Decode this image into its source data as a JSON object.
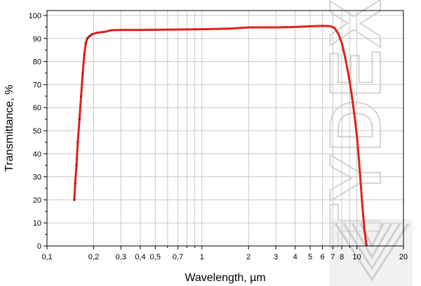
{
  "chart_data": {
    "type": "line",
    "title": "",
    "xlabel": "Wavelength, µm",
    "ylabel": "Transmittance, %",
    "x_scale": "log",
    "xlim": [
      0.1,
      20
    ],
    "ylim": [
      0,
      100
    ],
    "grid": true,
    "legend": "none",
    "x_ticks": [
      {
        "value": 0.1,
        "label": "0,1"
      },
      {
        "value": 0.2,
        "label": "0,2"
      },
      {
        "value": 0.3,
        "label": "0,3"
      },
      {
        "value": 0.4,
        "label": "0,4"
      },
      {
        "value": 0.5,
        "label": "0,5"
      },
      {
        "value": 0.7,
        "label": "0,7"
      },
      {
        "value": 1,
        "label": "1"
      },
      {
        "value": 2,
        "label": "2"
      },
      {
        "value": 3,
        "label": "3"
      },
      {
        "value": 4,
        "label": "4"
      },
      {
        "value": 5,
        "label": "5"
      },
      {
        "value": 6,
        "label": "6"
      },
      {
        "value": 7,
        "label": "7"
      },
      {
        "value": 8,
        "label": "8"
      },
      {
        "value": 10,
        "label": "10"
      },
      {
        "value": 20,
        "label": "20"
      }
    ],
    "x_minor_ticks": [
      0.6,
      0.8,
      0.9,
      9
    ],
    "y_ticks": [
      {
        "value": 0,
        "label": "0"
      },
      {
        "value": 10,
        "label": "10"
      },
      {
        "value": 20,
        "label": "20"
      },
      {
        "value": 30,
        "label": "30"
      },
      {
        "value": 40,
        "label": "40"
      },
      {
        "value": 50,
        "label": "50"
      },
      {
        "value": 60,
        "label": "60"
      },
      {
        "value": 70,
        "label": "70"
      },
      {
        "value": 80,
        "label": "80"
      },
      {
        "value": 90,
        "label": "90"
      },
      {
        "value": 100,
        "label": "100"
      }
    ],
    "series": [
      {
        "color": "#e0201b",
        "points": [
          [
            0.15,
            20
          ],
          [
            0.152,
            27
          ],
          [
            0.155,
            35
          ],
          [
            0.158,
            45
          ],
          [
            0.162,
            55
          ],
          [
            0.166,
            65
          ],
          [
            0.17,
            75
          ],
          [
            0.174,
            83
          ],
          [
            0.178,
            88
          ],
          [
            0.182,
            90
          ],
          [
            0.188,
            91
          ],
          [
            0.195,
            91.8
          ],
          [
            0.21,
            92.5
          ],
          [
            0.24,
            93
          ],
          [
            0.26,
            93.6
          ],
          [
            0.3,
            93.7
          ],
          [
            0.4,
            93.7
          ],
          [
            0.5,
            93.8
          ],
          [
            0.7,
            93.9
          ],
          [
            1.0,
            94.0
          ],
          [
            1.5,
            94.3
          ],
          [
            2.0,
            94.8
          ],
          [
            3.0,
            94.8
          ],
          [
            4.0,
            95.0
          ],
          [
            5.0,
            95.3
          ],
          [
            6.0,
            95.5
          ],
          [
            6.8,
            95.3
          ],
          [
            7.2,
            94.5
          ],
          [
            7.6,
            92.0
          ],
          [
            8.0,
            88.0
          ],
          [
            8.4,
            82.0
          ],
          [
            8.8,
            75.0
          ],
          [
            9.2,
            67.0
          ],
          [
            9.6,
            58.0
          ],
          [
            10.0,
            48.0
          ],
          [
            10.3,
            38.0
          ],
          [
            10.6,
            27.0
          ],
          [
            10.9,
            16.0
          ],
          [
            11.2,
            7.0
          ],
          [
            11.5,
            1.0
          ],
          [
            11.6,
            0.2
          ]
        ]
      }
    ]
  },
  "watermark": {
    "text": "TYDEX",
    "color": "#cfcfcf"
  }
}
